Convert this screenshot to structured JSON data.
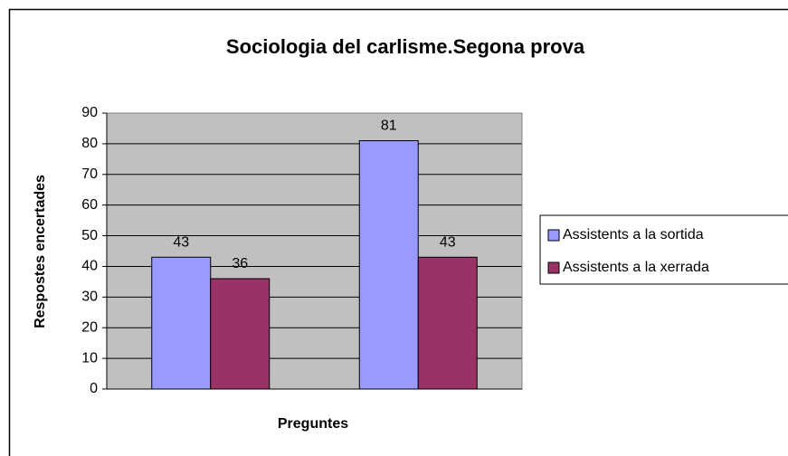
{
  "chart_data": {
    "type": "bar",
    "title": "Sociologia del carlisme.Segona prova",
    "xlabel": "Preguntes",
    "ylabel": "Respostes encertades",
    "categories": [
      null,
      null
    ],
    "series": [
      {
        "name": "Assistents a la sortida",
        "color": "#9999ff",
        "values": [
          43,
          81
        ]
      },
      {
        "name": "Assistents a la xerrada",
        "color": "#993366",
        "values": [
          36,
          43
        ]
      }
    ],
    "ylim": [
      0,
      90
    ],
    "yticks": [
      0,
      10,
      20,
      30,
      40,
      50,
      60,
      70,
      80,
      90
    ],
    "grid": true,
    "legend": "right",
    "data_labels": true
  }
}
